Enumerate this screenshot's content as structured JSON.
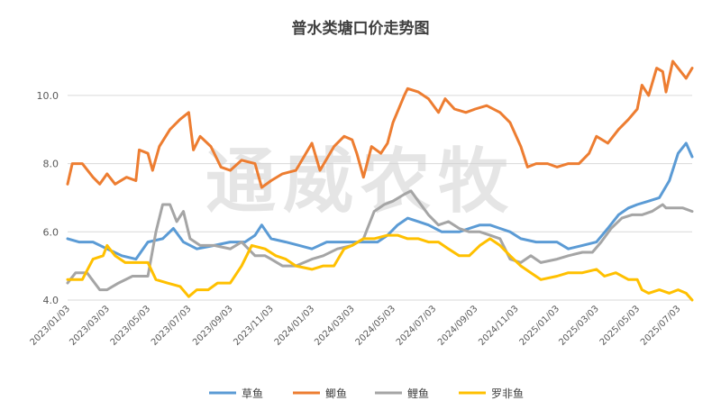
{
  "chart_data": {
    "type": "line",
    "title": "普水类塘口价走势图",
    "watermark": "通威农牧",
    "ylim": [
      4.0,
      11.0
    ],
    "yticks": [
      "4.0",
      "6.0",
      "8.0",
      "10.0"
    ],
    "ytick_values": [
      4.0,
      6.0,
      8.0,
      10.0
    ],
    "xlim": [
      "2023-01-03",
      "2025-07-24"
    ],
    "xtick_labels": [
      "2023/01/03",
      "2023/03/03",
      "2023/05/03",
      "2023/07/03",
      "2023/09/03",
      "2023/11/03",
      "2024/01/03",
      "2024/03/03",
      "2024/05/03",
      "2024/07/03",
      "2024/09/03",
      "2024/11/03",
      "2025/01/03",
      "2025/03/03",
      "2025/05/03",
      "2025/07/03"
    ],
    "xtick_dates": [
      "2023-01-03",
      "2023-03-03",
      "2023-05-03",
      "2023-07-03",
      "2023-09-03",
      "2023-11-03",
      "2024-01-03",
      "2024-03-03",
      "2024-05-03",
      "2024-07-03",
      "2024-09-03",
      "2024-11-03",
      "2025-01-03",
      "2025-03-03",
      "2025-05-03",
      "2025-07-03"
    ],
    "grid": "horizontal",
    "legend": "bottom",
    "series": [
      {
        "name": "草鱼",
        "color": "#5b9bd5",
        "points": [
          [
            "2023-01-03",
            5.8
          ],
          [
            "2023-01-20",
            5.7
          ],
          [
            "2023-02-10",
            5.7
          ],
          [
            "2023-03-03",
            5.5
          ],
          [
            "2023-03-25",
            5.3
          ],
          [
            "2023-04-15",
            5.2
          ],
          [
            "2023-05-03",
            5.7
          ],
          [
            "2023-05-25",
            5.8
          ],
          [
            "2023-06-10",
            6.1
          ],
          [
            "2023-06-25",
            5.7
          ],
          [
            "2023-07-15",
            5.5
          ],
          [
            "2023-08-10",
            5.6
          ],
          [
            "2023-09-03",
            5.7
          ],
          [
            "2023-09-25",
            5.7
          ],
          [
            "2023-10-10",
            5.9
          ],
          [
            "2023-10-20",
            6.2
          ],
          [
            "2023-11-03",
            5.8
          ],
          [
            "2023-11-25",
            5.7
          ],
          [
            "2023-12-15",
            5.6
          ],
          [
            "2024-01-03",
            5.5
          ],
          [
            "2024-01-25",
            5.7
          ],
          [
            "2024-02-15",
            5.7
          ],
          [
            "2024-03-03",
            5.7
          ],
          [
            "2024-03-25",
            5.7
          ],
          [
            "2024-04-10",
            5.7
          ],
          [
            "2024-04-25",
            5.9
          ],
          [
            "2024-05-10",
            6.2
          ],
          [
            "2024-05-25",
            6.4
          ],
          [
            "2024-06-10",
            6.3
          ],
          [
            "2024-06-25",
            6.2
          ],
          [
            "2024-07-15",
            6.0
          ],
          [
            "2024-08-10",
            6.0
          ],
          [
            "2024-08-25",
            6.1
          ],
          [
            "2024-09-10",
            6.2
          ],
          [
            "2024-09-25",
            6.2
          ],
          [
            "2024-10-10",
            6.1
          ],
          [
            "2024-10-25",
            6.0
          ],
          [
            "2024-11-10",
            5.8
          ],
          [
            "2024-12-03",
            5.7
          ],
          [
            "2025-01-03",
            5.7
          ],
          [
            "2025-01-20",
            5.5
          ],
          [
            "2025-02-10",
            5.6
          ],
          [
            "2025-03-03",
            5.7
          ],
          [
            "2025-03-20",
            6.1
          ],
          [
            "2025-04-05",
            6.5
          ],
          [
            "2025-04-20",
            6.7
          ],
          [
            "2025-05-03",
            6.8
          ],
          [
            "2025-05-20",
            6.9
          ],
          [
            "2025-06-05",
            7.0
          ],
          [
            "2025-06-20",
            7.5
          ],
          [
            "2025-07-03",
            8.3
          ],
          [
            "2025-07-15",
            8.6
          ],
          [
            "2025-07-24",
            8.2
          ]
        ]
      },
      {
        "name": "鲫鱼",
        "color": "#ed7d31",
        "points": [
          [
            "2023-01-03",
            7.4
          ],
          [
            "2023-01-10",
            8.0
          ],
          [
            "2023-01-25",
            8.0
          ],
          [
            "2023-02-10",
            7.6
          ],
          [
            "2023-02-20",
            7.4
          ],
          [
            "2023-03-03",
            7.7
          ],
          [
            "2023-03-15",
            7.4
          ],
          [
            "2023-04-01",
            7.6
          ],
          [
            "2023-04-15",
            7.5
          ],
          [
            "2023-04-20",
            8.4
          ],
          [
            "2023-05-03",
            8.3
          ],
          [
            "2023-05-10",
            7.8
          ],
          [
            "2023-05-20",
            8.5
          ],
          [
            "2023-06-05",
            9.0
          ],
          [
            "2023-06-20",
            9.3
          ],
          [
            "2023-07-03",
            9.5
          ],
          [
            "2023-07-10",
            8.4
          ],
          [
            "2023-07-20",
            8.8
          ],
          [
            "2023-08-05",
            8.5
          ],
          [
            "2023-08-20",
            7.9
          ],
          [
            "2023-09-03",
            7.8
          ],
          [
            "2023-09-20",
            8.1
          ],
          [
            "2023-10-10",
            8.0
          ],
          [
            "2023-10-20",
            7.3
          ],
          [
            "2023-11-03",
            7.5
          ],
          [
            "2023-11-20",
            7.7
          ],
          [
            "2023-12-10",
            7.8
          ],
          [
            "2024-01-03",
            8.6
          ],
          [
            "2024-01-15",
            7.8
          ],
          [
            "2024-02-05",
            8.5
          ],
          [
            "2024-02-20",
            8.8
          ],
          [
            "2024-03-03",
            8.7
          ],
          [
            "2024-03-10",
            8.3
          ],
          [
            "2024-03-20",
            7.6
          ],
          [
            "2024-04-01",
            8.5
          ],
          [
            "2024-04-15",
            8.3
          ],
          [
            "2024-04-25",
            8.6
          ],
          [
            "2024-05-03",
            9.2
          ],
          [
            "2024-05-20",
            10.0
          ],
          [
            "2024-05-25",
            10.2
          ],
          [
            "2024-06-10",
            10.1
          ],
          [
            "2024-06-25",
            9.9
          ],
          [
            "2024-07-10",
            9.5
          ],
          [
            "2024-07-20",
            9.9
          ],
          [
            "2024-08-03",
            9.6
          ],
          [
            "2024-08-20",
            9.5
          ],
          [
            "2024-09-03",
            9.6
          ],
          [
            "2024-09-20",
            9.7
          ],
          [
            "2024-10-10",
            9.5
          ],
          [
            "2024-10-25",
            9.2
          ],
          [
            "2024-11-10",
            8.5
          ],
          [
            "2024-11-20",
            7.9
          ],
          [
            "2024-12-03",
            8.0
          ],
          [
            "2024-12-20",
            8.0
          ],
          [
            "2025-01-03",
            7.9
          ],
          [
            "2025-01-20",
            8.0
          ],
          [
            "2025-02-05",
            8.0
          ],
          [
            "2025-02-20",
            8.3
          ],
          [
            "2025-03-03",
            8.8
          ],
          [
            "2025-03-20",
            8.6
          ],
          [
            "2025-04-05",
            9.0
          ],
          [
            "2025-04-20",
            9.3
          ],
          [
            "2025-05-03",
            9.6
          ],
          [
            "2025-05-10",
            10.3
          ],
          [
            "2025-05-20",
            10.0
          ],
          [
            "2025-06-01",
            10.8
          ],
          [
            "2025-06-10",
            10.7
          ],
          [
            "2025-06-15",
            10.1
          ],
          [
            "2025-06-25",
            11.0
          ],
          [
            "2025-07-03",
            10.8
          ],
          [
            "2025-07-15",
            10.5
          ],
          [
            "2025-07-24",
            10.8
          ]
        ]
      },
      {
        "name": "鲤鱼",
        "color": "#a5a5a5",
        "points": [
          [
            "2023-01-03",
            4.5
          ],
          [
            "2023-01-15",
            4.8
          ],
          [
            "2023-02-01",
            4.8
          ],
          [
            "2023-02-20",
            4.3
          ],
          [
            "2023-03-03",
            4.3
          ],
          [
            "2023-03-20",
            4.5
          ],
          [
            "2023-04-10",
            4.7
          ],
          [
            "2023-05-03",
            4.7
          ],
          [
            "2023-05-15",
            6.0
          ],
          [
            "2023-05-25",
            6.8
          ],
          [
            "2023-06-05",
            6.8
          ],
          [
            "2023-06-15",
            6.3
          ],
          [
            "2023-06-25",
            6.6
          ],
          [
            "2023-07-05",
            5.8
          ],
          [
            "2023-07-20",
            5.6
          ],
          [
            "2023-08-10",
            5.6
          ],
          [
            "2023-09-03",
            5.5
          ],
          [
            "2023-09-20",
            5.7
          ],
          [
            "2023-10-10",
            5.3
          ],
          [
            "2023-10-25",
            5.3
          ],
          [
            "2023-11-03",
            5.2
          ],
          [
            "2023-11-20",
            5.0
          ],
          [
            "2023-12-10",
            5.0
          ],
          [
            "2024-01-03",
            5.2
          ],
          [
            "2024-01-20",
            5.3
          ],
          [
            "2024-02-10",
            5.5
          ],
          [
            "2024-03-03",
            5.6
          ],
          [
            "2024-03-20",
            5.8
          ],
          [
            "2024-04-05",
            6.6
          ],
          [
            "2024-04-20",
            6.8
          ],
          [
            "2024-05-03",
            6.9
          ],
          [
            "2024-05-20",
            7.1
          ],
          [
            "2024-05-30",
            7.2
          ],
          [
            "2024-06-10",
            6.9
          ],
          [
            "2024-06-25",
            6.5
          ],
          [
            "2024-07-10",
            6.2
          ],
          [
            "2024-07-25",
            6.3
          ],
          [
            "2024-08-10",
            6.1
          ],
          [
            "2024-08-25",
            6.0
          ],
          [
            "2024-09-10",
            6.0
          ],
          [
            "2024-09-25",
            5.9
          ],
          [
            "2024-10-10",
            5.8
          ],
          [
            "2024-10-25",
            5.2
          ],
          [
            "2024-11-10",
            5.1
          ],
          [
            "2024-11-25",
            5.3
          ],
          [
            "2024-12-10",
            5.1
          ],
          [
            "2025-01-03",
            5.2
          ],
          [
            "2025-01-20",
            5.3
          ],
          [
            "2025-02-10",
            5.4
          ],
          [
            "2025-02-25",
            5.4
          ],
          [
            "2025-03-10",
            5.7
          ],
          [
            "2025-03-25",
            6.1
          ],
          [
            "2025-04-10",
            6.4
          ],
          [
            "2025-04-25",
            6.5
          ],
          [
            "2025-05-10",
            6.5
          ],
          [
            "2025-05-25",
            6.6
          ],
          [
            "2025-06-10",
            6.8
          ],
          [
            "2025-06-15",
            6.7
          ],
          [
            "2025-06-25",
            6.7
          ],
          [
            "2025-07-10",
            6.7
          ],
          [
            "2025-07-24",
            6.6
          ]
        ]
      },
      {
        "name": "罗非鱼",
        "color": "#ffc000",
        "points": [
          [
            "2023-01-03",
            4.6
          ],
          [
            "2023-01-25",
            4.6
          ],
          [
            "2023-02-10",
            5.2
          ],
          [
            "2023-02-25",
            5.3
          ],
          [
            "2023-03-03",
            5.6
          ],
          [
            "2023-03-15",
            5.3
          ],
          [
            "2023-03-30",
            5.1
          ],
          [
            "2023-04-20",
            5.1
          ],
          [
            "2023-05-03",
            5.1
          ],
          [
            "2023-05-15",
            4.6
          ],
          [
            "2023-06-01",
            4.5
          ],
          [
            "2023-06-20",
            4.4
          ],
          [
            "2023-07-03",
            4.1
          ],
          [
            "2023-07-15",
            4.3
          ],
          [
            "2023-08-01",
            4.3
          ],
          [
            "2023-08-15",
            4.5
          ],
          [
            "2023-09-03",
            4.5
          ],
          [
            "2023-09-20",
            5.0
          ],
          [
            "2023-10-05",
            5.6
          ],
          [
            "2023-10-25",
            5.5
          ],
          [
            "2023-11-10",
            5.3
          ],
          [
            "2023-11-25",
            5.2
          ],
          [
            "2023-12-10",
            5.0
          ],
          [
            "2024-01-03",
            4.9
          ],
          [
            "2024-01-20",
            5.0
          ],
          [
            "2024-02-05",
            5.0
          ],
          [
            "2024-02-20",
            5.5
          ],
          [
            "2024-03-03",
            5.6
          ],
          [
            "2024-03-20",
            5.8
          ],
          [
            "2024-04-05",
            5.8
          ],
          [
            "2024-04-25",
            5.9
          ],
          [
            "2024-05-10",
            5.9
          ],
          [
            "2024-05-25",
            5.8
          ],
          [
            "2024-06-10",
            5.8
          ],
          [
            "2024-06-25",
            5.7
          ],
          [
            "2024-07-10",
            5.7
          ],
          [
            "2024-07-25",
            5.5
          ],
          [
            "2024-08-10",
            5.3
          ],
          [
            "2024-08-25",
            5.3
          ],
          [
            "2024-09-10",
            5.6
          ],
          [
            "2024-09-25",
            5.8
          ],
          [
            "2024-10-10",
            5.6
          ],
          [
            "2024-10-25",
            5.3
          ],
          [
            "2024-11-10",
            5.0
          ],
          [
            "2024-11-25",
            4.8
          ],
          [
            "2024-12-10",
            4.6
          ],
          [
            "2025-01-03",
            4.7
          ],
          [
            "2025-01-20",
            4.8
          ],
          [
            "2025-02-10",
            4.8
          ],
          [
            "2025-03-03",
            4.9
          ],
          [
            "2025-03-15",
            4.7
          ],
          [
            "2025-04-01",
            4.8
          ],
          [
            "2025-04-20",
            4.6
          ],
          [
            "2025-05-03",
            4.6
          ],
          [
            "2025-05-10",
            4.3
          ],
          [
            "2025-05-20",
            4.2
          ],
          [
            "2025-06-05",
            4.3
          ],
          [
            "2025-06-20",
            4.2
          ],
          [
            "2025-07-03",
            4.3
          ],
          [
            "2025-07-15",
            4.2
          ],
          [
            "2025-07-24",
            4.0
          ]
        ]
      }
    ]
  }
}
